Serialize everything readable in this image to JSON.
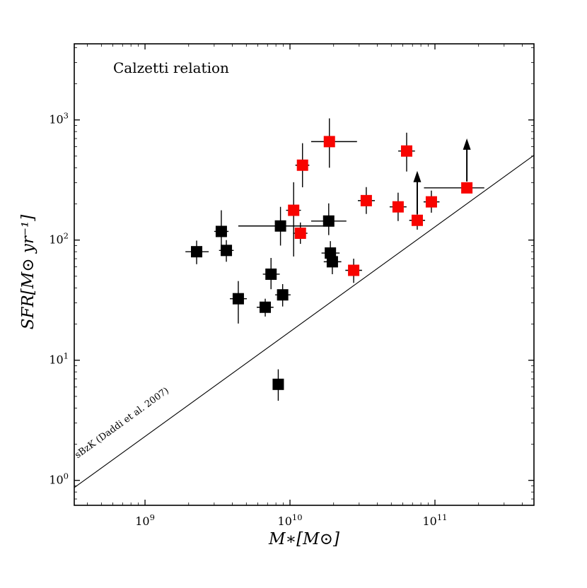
{
  "figure": {
    "annotation": "Calzetti relation",
    "xlabel": "M∗[M⊙]",
    "ylabel": "SFR[M⊙ yr⁻¹]"
  },
  "chart_data": {
    "type": "scatter",
    "title": "Calzetti relation",
    "xlabel": "M*[Msun]",
    "ylabel": "SFR[Msun yr^-1]",
    "x_scale": "log",
    "y_scale": "log",
    "xlim": [
      325000000.0,
      482000000000.0
    ],
    "ylim": [
      0.62,
      4300
    ],
    "grid": false,
    "tick_base": "10",
    "x_tick_exponents": [
      9,
      10,
      11
    ],
    "y_tick_exponents": [
      0,
      1,
      2,
      3
    ],
    "line": {
      "label": "sBzK (Daddi et al. 2007)",
      "x": [
        325000000.0,
        482000000000.0
      ],
      "y": [
        0.87,
        508
      ],
      "color": "#000000"
    },
    "series": [
      {
        "name": "black-squares",
        "color": "#000000",
        "marker": "square",
        "points": [
          {
            "x": 2270000000.0,
            "y": 80,
            "xerr": [
              370000000.0,
              480000000.0
            ],
            "yerr": [
              17,
              19
            ]
          },
          {
            "x": 3360000000.0,
            "y": 118,
            "xerr": [
              360000000.0,
              410000000.0
            ],
            "yerr": [
              34,
              59
            ]
          },
          {
            "x": 3640000000.0,
            "y": 82,
            "xerr": [
              400000000.0,
              450000000.0
            ],
            "yerr": [
              16,
              18
            ]
          },
          {
            "x": 4400000000.0,
            "y": 32.5,
            "xerr": [
              550000000.0,
              640000000.0
            ],
            "yerr": [
              12.3,
              13.1
            ]
          },
          {
            "x": 6750000000.0,
            "y": 27.6,
            "xerr": [
              850000000.0,
              950000000.0
            ],
            "yerr": [
              4.5,
              4.9
            ]
          },
          {
            "x": 7400000000.0,
            "y": 52,
            "xerr": [
              900000000.0,
              1100000000.0
            ],
            "yerr": [
              13,
              19
            ]
          },
          {
            "x": 8600000000.0,
            "y": 131,
            "xerr": [
              4200000000.0,
              11000000000.0
            ],
            "yerr": [
              41,
              58
            ]
          },
          {
            "x": 8900000000.0,
            "y": 35,
            "xerr": [
              1000000000.0,
              1200000000.0
            ],
            "yerr": [
              7,
              8
            ]
          },
          {
            "x": 8300000000.0,
            "y": 6.3,
            "xerr": [
              0,
              0
            ],
            "yerr": [
              1.7,
              2.1
            ]
          },
          {
            "x": 18500000000.0,
            "y": 144,
            "xerr": [
              4500000000.0,
              6000000000.0
            ],
            "yerr": [
              34,
              58
            ]
          },
          {
            "x": 19000000000.0,
            "y": 78,
            "xerr": [
              2500000000.0,
              3000000000.0
            ],
            "yerr": [
              16,
              20
            ]
          },
          {
            "x": 19600000000.0,
            "y": 66,
            "xerr": [
              2500000000.0,
              3000000000.0
            ],
            "yerr": [
              14,
              16
            ]
          }
        ]
      },
      {
        "name": "red-squares",
        "color": "#f80400",
        "marker": "square",
        "points": [
          {
            "x": 12200000000.0,
            "y": 420,
            "xerr": [
              1300000000.0,
              1400000000.0
            ],
            "yerr": [
              145,
              220
            ]
          },
          {
            "x": 10600000000.0,
            "y": 177,
            "xerr": [
              1200000000.0,
              1300000000.0
            ],
            "yerr": [
              104,
              126
            ]
          },
          {
            "x": 11800000000.0,
            "y": 114,
            "xerr": [
              1300000000.0,
              1400000000.0
            ],
            "yerr": [
              21,
              26
            ]
          },
          {
            "x": 18700000000.0,
            "y": 660,
            "xerr": [
              4700000000.0,
              10300000000.0
            ],
            "yerr": [
              260,
              370
            ]
          },
          {
            "x": 33600000000.0,
            "y": 213,
            "xerr": [
              4200000000.0,
              4900000000.0
            ],
            "yerr": [
              48,
              63
            ]
          },
          {
            "x": 27500000000.0,
            "y": 56,
            "xerr": [
              3400000000.0,
              3900000000.0
            ],
            "yerr": [
              12,
              14
            ]
          },
          {
            "x": 55700000000.0,
            "y": 189,
            "xerr": [
              7000000000.0,
              8000000000.0
            ],
            "yerr": [
              45,
              59
            ]
          },
          {
            "x": 63800000000.0,
            "y": 551,
            "xerr": [
              8000000000.0,
              9000000000.0
            ],
            "yerr": [
              179,
              232
            ]
          },
          {
            "x": 75500000000.0,
            "y": 146,
            "xerr": [
              9000000000.0,
              10000000000.0
            ],
            "yerr": [
              24,
              31
            ],
            "lower_limit": true
          },
          {
            "x": 94500000000.0,
            "y": 208,
            "xerr": [
              11000000000.0,
              13000000000.0
            ],
            "yerr": [
              39,
              50
            ]
          },
          {
            "x": 166000000000.0,
            "y": 272,
            "xerr": [
              82000000000.0,
              53000000000.0
            ],
            "yerr": [
              0,
              0
            ],
            "lower_limit": true
          }
        ]
      }
    ]
  }
}
